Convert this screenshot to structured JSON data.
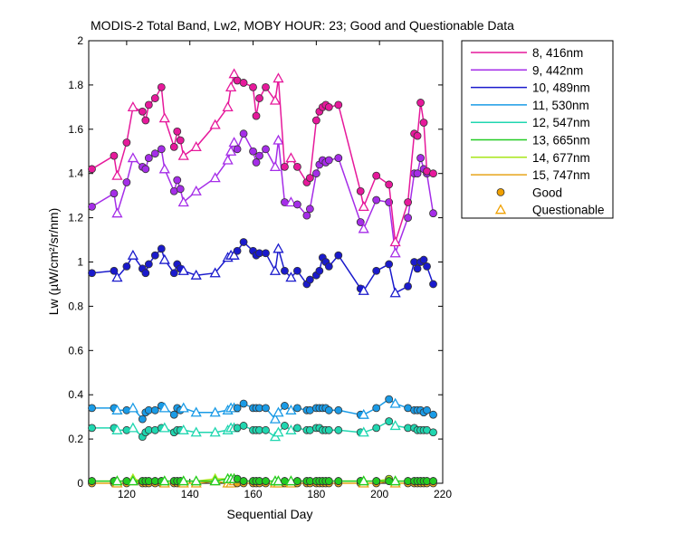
{
  "chart_data": {
    "type": "line",
    "title": "MODIS-2 Total Band,  Lw2, MOBY HOUR: 23;  Good and Questionable Data",
    "xlabel": "Sequential Day",
    "ylabel": "Lw (µW/cm²/sr/nm)",
    "xlim": [
      108,
      220
    ],
    "ylim": [
      0,
      2
    ],
    "xticks": [
      120,
      140,
      160,
      180,
      200,
      220
    ],
    "yticks": [
      0,
      0.2,
      0.4,
      0.6,
      0.8,
      1,
      1.2,
      1.4,
      1.6,
      1.8,
      2
    ],
    "grid": false,
    "legend_position": "outside-top-right",
    "legend": [
      {
        "label": "8, 416nm",
        "color": "#e6199b"
      },
      {
        "label": "9, 442nm",
        "color": "#a52de8"
      },
      {
        "label": "10, 489nm",
        "color": "#1a1acc"
      },
      {
        "label": "11, 530nm",
        "color": "#1a9be6"
      },
      {
        "label": "12, 547nm",
        "color": "#20d6b0"
      },
      {
        "label": "13, 665nm",
        "color": "#22cc22"
      },
      {
        "label": "14, 677nm",
        "color": "#a8e61a"
      },
      {
        "label": "15, 747nm",
        "color": "#e6a51a"
      },
      {
        "label": "Good",
        "marker": "circle",
        "color": "#f0a000"
      },
      {
        "label": "Questionable",
        "marker": "triangle",
        "color": "#f0a000"
      }
    ],
    "x": [
      109,
      116,
      117,
      120,
      122,
      125,
      126,
      127,
      129,
      131,
      132,
      135,
      136,
      137,
      138,
      142,
      148,
      152,
      153,
      154,
      155,
      157,
      160,
      161,
      162,
      164,
      167,
      168,
      170,
      172,
      174,
      177,
      178,
      180,
      181,
      182,
      183,
      184,
      187,
      194,
      195,
      199,
      203,
      205,
      209,
      211,
      212,
      213,
      214,
      215,
      217
    ],
    "quality": [
      "G",
      "G",
      "Q",
      "G",
      "Q",
      "G",
      "G",
      "G",
      "G",
      "G",
      "Q",
      "G",
      "G",
      "G",
      "Q",
      "Q",
      "Q",
      "Q",
      "Q",
      "Q",
      "G",
      "G",
      "G",
      "G",
      "G",
      "G",
      "Q",
      "Q",
      "G",
      "Q",
      "G",
      "G",
      "G",
      "G",
      "G",
      "G",
      "G",
      "G",
      "G",
      "G",
      "Q",
      "G",
      "G",
      "Q",
      "G",
      "G",
      "G",
      "G",
      "G",
      "G",
      "G"
    ],
    "series": [
      {
        "name": "8, 416nm",
        "color": "#e6199b",
        "values": [
          1.42,
          1.48,
          1.39,
          1.54,
          1.7,
          1.68,
          1.64,
          1.71,
          1.74,
          1.79,
          1.65,
          1.52,
          1.59,
          1.55,
          1.48,
          1.52,
          1.62,
          1.7,
          1.79,
          1.85,
          1.82,
          1.81,
          1.79,
          1.66,
          1.74,
          1.79,
          1.73,
          1.83,
          1.43,
          1.47,
          1.43,
          1.36,
          1.38,
          1.64,
          1.68,
          1.7,
          1.71,
          1.7,
          1.71,
          1.32,
          1.25,
          1.39,
          1.35,
          1.09,
          1.27,
          1.58,
          1.57,
          1.72,
          1.63,
          1.41,
          1.4
        ]
      },
      {
        "name": "9, 442nm",
        "color": "#a52de8",
        "values": [
          1.25,
          1.31,
          1.22,
          1.36,
          1.47,
          1.43,
          1.42,
          1.47,
          1.49,
          1.51,
          1.42,
          1.32,
          1.37,
          1.33,
          1.27,
          1.32,
          1.38,
          1.46,
          1.5,
          1.54,
          1.51,
          1.58,
          1.5,
          1.45,
          1.48,
          1.51,
          1.43,
          1.55,
          1.27,
          1.27,
          1.26,
          1.21,
          1.24,
          1.4,
          1.44,
          1.46,
          1.45,
          1.46,
          1.47,
          1.18,
          1.15,
          1.28,
          1.27,
          1.04,
          1.2,
          1.4,
          1.4,
          1.47,
          1.42,
          1.4,
          1.22
        ]
      },
      {
        "name": "10, 489nm",
        "color": "#1a1acc",
        "values": [
          0.95,
          0.96,
          0.93,
          0.98,
          1.03,
          0.97,
          0.95,
          0.99,
          1.03,
          1.06,
          1.01,
          0.95,
          0.99,
          0.97,
          0.96,
          0.94,
          0.95,
          1.02,
          1.03,
          1.03,
          1.05,
          1.09,
          1.05,
          1.03,
          1.04,
          1.04,
          0.96,
          1.06,
          0.96,
          0.93,
          0.96,
          0.9,
          0.92,
          0.94,
          0.96,
          1.02,
          1.0,
          0.98,
          1.03,
          0.88,
          0.87,
          0.96,
          0.99,
          0.86,
          0.89,
          1.0,
          0.97,
          1.0,
          1.01,
          0.98,
          0.9
        ]
      },
      {
        "name": "11, 530nm",
        "color": "#1a9be6",
        "values": [
          0.34,
          0.34,
          0.33,
          0.33,
          0.34,
          0.29,
          0.32,
          0.33,
          0.33,
          0.35,
          0.34,
          0.31,
          0.34,
          0.33,
          0.34,
          0.32,
          0.32,
          0.33,
          0.34,
          0.34,
          0.34,
          0.36,
          0.34,
          0.34,
          0.34,
          0.34,
          0.29,
          0.32,
          0.35,
          0.33,
          0.34,
          0.33,
          0.33,
          0.34,
          0.34,
          0.34,
          0.34,
          0.33,
          0.33,
          0.31,
          0.31,
          0.34,
          0.38,
          0.36,
          0.34,
          0.33,
          0.33,
          0.33,
          0.32,
          0.33,
          0.31
        ]
      },
      {
        "name": "12, 547nm",
        "color": "#20d6b0",
        "values": [
          0.25,
          0.25,
          0.24,
          0.24,
          0.25,
          0.21,
          0.23,
          0.24,
          0.24,
          0.25,
          0.25,
          0.23,
          0.24,
          0.24,
          0.24,
          0.23,
          0.23,
          0.24,
          0.25,
          0.25,
          0.25,
          0.26,
          0.24,
          0.24,
          0.24,
          0.24,
          0.21,
          0.23,
          0.26,
          0.24,
          0.25,
          0.24,
          0.24,
          0.25,
          0.25,
          0.24,
          0.24,
          0.24,
          0.24,
          0.23,
          0.23,
          0.25,
          0.28,
          0.26,
          0.25,
          0.25,
          0.24,
          0.24,
          0.24,
          0.24,
          0.23
        ]
      },
      {
        "name": "13, 665nm",
        "color": "#22cc22",
        "values": [
          0.01,
          0.01,
          0.01,
          0.01,
          0.01,
          0.01,
          0.01,
          0.01,
          0.01,
          0.01,
          0.01,
          0.01,
          0.01,
          0.01,
          0.01,
          0.01,
          0.01,
          0.02,
          0.02,
          0.02,
          0.02,
          0.01,
          0.01,
          0.01,
          0.01,
          0.01,
          0.01,
          0.01,
          0.01,
          0.01,
          0.01,
          0.01,
          0.01,
          0.01,
          0.01,
          0.01,
          0.01,
          0.01,
          0.01,
          0.01,
          0.01,
          0.01,
          0.01,
          0.01,
          0.01,
          0.01,
          0.01,
          0.01,
          0.01,
          0.01,
          0.01
        ]
      },
      {
        "name": "14, 677nm",
        "color": "#a8e61a",
        "values": [
          0.01,
          0.01,
          0.01,
          0.01,
          0.02,
          0.01,
          0.01,
          0.01,
          0.01,
          0.01,
          0.01,
          0.01,
          0.01,
          0.01,
          0.01,
          0.01,
          0.02,
          0.02,
          0.02,
          0.02,
          0.02,
          0.01,
          0.01,
          0.01,
          0.01,
          0.01,
          0.01,
          0.01,
          0.01,
          0.01,
          0.01,
          0.01,
          0.01,
          0.01,
          0.01,
          0.01,
          0.01,
          0.01,
          0.01,
          0.01,
          0.01,
          0.01,
          0.02,
          0.01,
          0.01,
          0.01,
          0.01,
          0.01,
          0.01,
          0.01,
          0.01
        ]
      },
      {
        "name": "15, 747nm",
        "color": "#e6a51a",
        "values": [
          0.0,
          0.0,
          0.0,
          0.0,
          0.01,
          0.0,
          0.0,
          0.0,
          0.0,
          0.0,
          0.0,
          0.0,
          0.0,
          0.0,
          0.0,
          0.0,
          0.01,
          0.0,
          0.0,
          0.01,
          0.0,
          0.0,
          0.0,
          0.0,
          0.0,
          0.0,
          0.0,
          0.0,
          0.0,
          0.0,
          0.0,
          0.0,
          0.0,
          0.0,
          0.0,
          0.0,
          0.0,
          0.0,
          0.0,
          0.0,
          0.0,
          0.0,
          0.01,
          0.0,
          0.0,
          0.0,
          0.0,
          0.0,
          0.0,
          0.0,
          0.0
        ]
      }
    ]
  }
}
